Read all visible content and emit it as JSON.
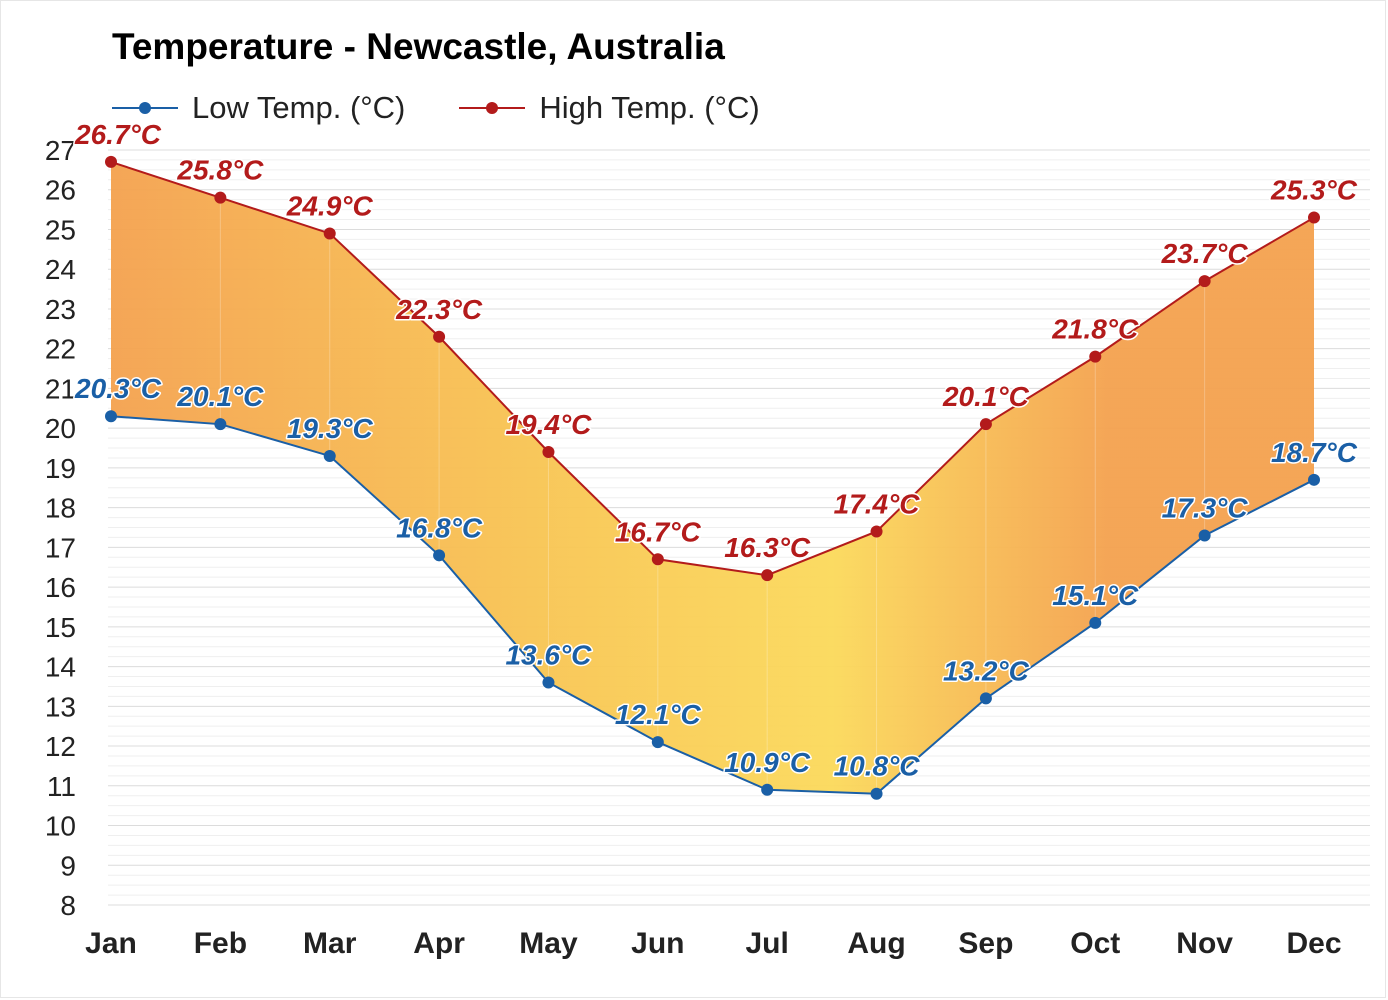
{
  "chart_data": {
    "type": "area",
    "title": "Temperature - Newcastle, Australia",
    "categories": [
      "Jan",
      "Feb",
      "Mar",
      "Apr",
      "May",
      "Jun",
      "Jul",
      "Aug",
      "Sep",
      "Oct",
      "Nov",
      "Dec"
    ],
    "series": [
      {
        "name": "Low Temp. (°C)",
        "color": "#1a5fa6",
        "values": [
          20.3,
          20.1,
          19.3,
          16.8,
          13.6,
          12.1,
          10.9,
          10.8,
          13.2,
          15.1,
          17.3,
          18.7
        ],
        "labels": [
          "20.3°C",
          "20.1°C",
          "19.3°C",
          "16.8°C",
          "13.6°C",
          "12.1°C",
          "10.9°C",
          "10.8°C",
          "13.2°C",
          "15.1°C",
          "17.3°C",
          "18.7°C"
        ]
      },
      {
        "name": "High Temp. (°C)",
        "color": "#b31b1b",
        "values": [
          26.7,
          25.8,
          24.9,
          22.3,
          19.4,
          16.7,
          16.3,
          17.4,
          20.1,
          21.8,
          23.7,
          25.3
        ],
        "labels": [
          "26.7°C",
          "25.8°C",
          "24.9°C",
          "22.3°C",
          "19.4°C",
          "16.7°C",
          "16.3°C",
          "17.4°C",
          "20.1°C",
          "21.8°C",
          "23.7°C",
          "25.3°C"
        ]
      }
    ],
    "ylim": [
      8,
      27
    ],
    "yticks": [
      "8",
      "9",
      "10",
      "11",
      "12",
      "13",
      "14",
      "15",
      "16",
      "17",
      "18",
      "19",
      "20",
      "21",
      "22",
      "23",
      "24",
      "25",
      "26",
      "27"
    ],
    "band_fill": {
      "warm": "#f4a14e",
      "cool": "#fbd95a"
    },
    "grid": true,
    "legend_position": "top-left"
  }
}
